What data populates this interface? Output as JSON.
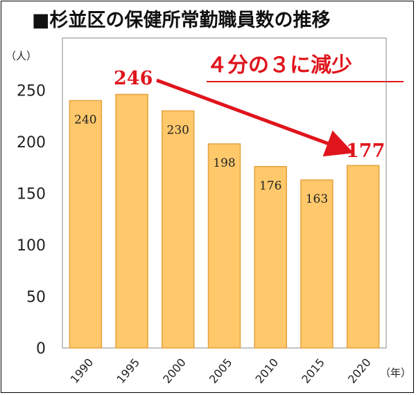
{
  "chart_data": {
    "type": "bar",
    "title": "■杉並区の保健所常勤職員数の推移",
    "categories": [
      "1990",
      "1995",
      "2000",
      "2005",
      "2010",
      "2015",
      "2020"
    ],
    "values": [
      240,
      246,
      230,
      198,
      176,
      163,
      177
    ],
    "y_unit": "（人）",
    "x_unit": "（年）",
    "ylim": [
      0,
      270
    ],
    "yticks": [
      0,
      50,
      100,
      150,
      200,
      250
    ],
    "grid": false,
    "callout": "４分の３に減少",
    "highlight_start": "246",
    "highlight_end": "177",
    "colors": {
      "bar_fill": "#ffc86b",
      "bar_stroke": "#e7a23c",
      "accent": "#e0141c"
    }
  }
}
